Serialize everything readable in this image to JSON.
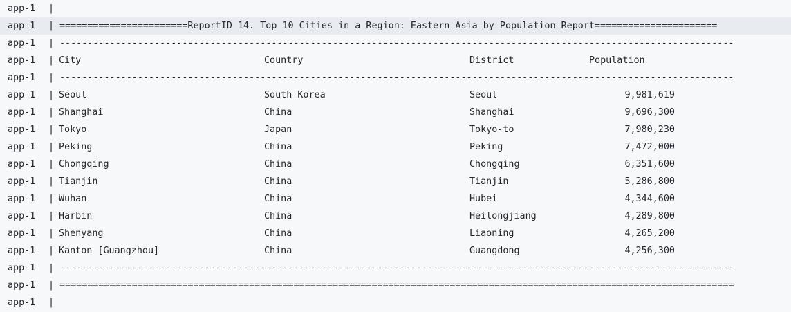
{
  "prefix": "app-1",
  "pipe": "|",
  "title_line": "=======================ReportID 14. Top 10 Cities in a Region: Eastern Asia by Population Report======================",
  "dash_line": "-------------------------------------------------------------------------------------------------------------------------",
  "eq_line": "=========================================================================================================================",
  "headers": {
    "city": "City",
    "country": "Country",
    "district": "District",
    "population": "Population"
  },
  "rows": [
    {
      "city": "Seoul",
      "country": "South Korea",
      "district": "Seoul",
      "population": "9,981,619"
    },
    {
      "city": "Shanghai",
      "country": "China",
      "district": "Shanghai",
      "population": "9,696,300"
    },
    {
      "city": "Tokyo",
      "country": "Japan",
      "district": "Tokyo-to",
      "population": "7,980,230"
    },
    {
      "city": "Peking",
      "country": "China",
      "district": "Peking",
      "population": "7,472,000"
    },
    {
      "city": "Chongqing",
      "country": "China",
      "district": "Chongqing",
      "population": "6,351,600"
    },
    {
      "city": "Tianjin",
      "country": "China",
      "district": "Tianjin",
      "population": "5,286,800"
    },
    {
      "city": "Wuhan",
      "country": "China",
      "district": "Hubei",
      "population": "4,344,600"
    },
    {
      "city": "Harbin",
      "country": "China",
      "district": "Heilongjiang",
      "population": "4,289,800"
    },
    {
      "city": "Shenyang",
      "country": "China",
      "district": "Liaoning",
      "population": "4,265,200"
    },
    {
      "city": "Kanton [Guangzhou]",
      "country": "China",
      "district": "Guangdong",
      "population": "4,256,300"
    }
  ]
}
